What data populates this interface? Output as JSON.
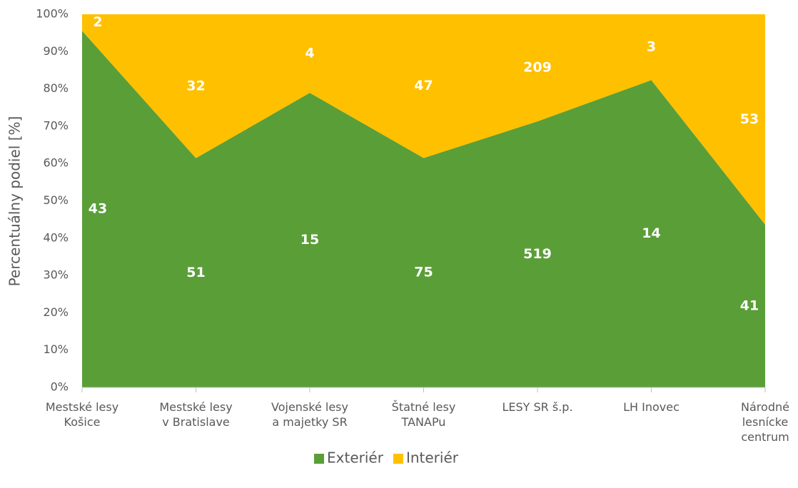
{
  "chart_data": {
    "type": "area",
    "stacked": "percent",
    "y_label": "Percentuálny podiel [%]",
    "categories": [
      "Mestské lesy\nKošice",
      "Mestské lesy\nv Bratislave",
      "Vojenské lesy\na majetky SR",
      "Štatné lesy\nTANAPu",
      "LESY SR š.p.",
      "LH Inovec",
      "Národné\nlesnícke\ncentrum"
    ],
    "series": [
      {
        "name": "Exteriér",
        "color": "#5a9e38",
        "values": [
          43,
          51,
          15,
          75,
          519,
          14,
          41
        ]
      },
      {
        "name": "Interiér",
        "color": "#ffc000",
        "values": [
          2,
          32,
          4,
          47,
          209,
          3,
          53
        ]
      }
    ],
    "ylim": [
      0,
      100
    ],
    "yticks": [
      {
        "value": 0,
        "label": "0%"
      },
      {
        "value": 10,
        "label": "10%"
      },
      {
        "value": 20,
        "label": "20%"
      },
      {
        "value": 30,
        "label": "30%"
      },
      {
        "value": 40,
        "label": "40%"
      },
      {
        "value": 50,
        "label": "50%"
      },
      {
        "value": 60,
        "label": "60%"
      },
      {
        "value": 70,
        "label": "70%"
      },
      {
        "value": 80,
        "label": "80%"
      },
      {
        "value": 90,
        "label": "90%"
      },
      {
        "value": 100,
        "label": "100%"
      }
    ],
    "legend": "bottom"
  }
}
